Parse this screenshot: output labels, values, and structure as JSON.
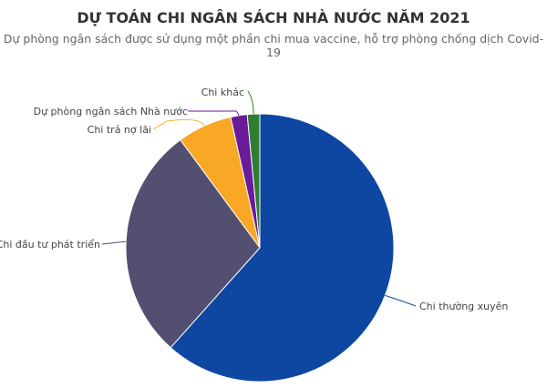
{
  "chart_data": {
    "type": "pie",
    "title": "DỰ TOÁN CHI NGÂN SÁCH NHÀ NƯỚC NĂM 2021",
    "subtitle": "Dự phòng ngân sách được sử dụng một phần chi mua vaccine, hỗ trợ phòng chống dịch Covid-19",
    "start_angle": "top, clockwise",
    "legend": "none (leader-line labels)",
    "slices": [
      {
        "label": "Chi thường xuyên",
        "value": 61.6,
        "color": "#0d47a1"
      },
      {
        "label": "Chi đầu tư phát triển",
        "value": 28.3,
        "color": "#534f70"
      },
      {
        "label": "Chi trả nợ lãi",
        "value": 6.6,
        "color": "#f9a825"
      },
      {
        "label": "Dự phòng ngân sách Nhà nước",
        "value": 2.0,
        "color": "#6a1b9a"
      },
      {
        "label": "Chi khác",
        "value": 1.5,
        "color": "#2e7d32"
      }
    ]
  }
}
